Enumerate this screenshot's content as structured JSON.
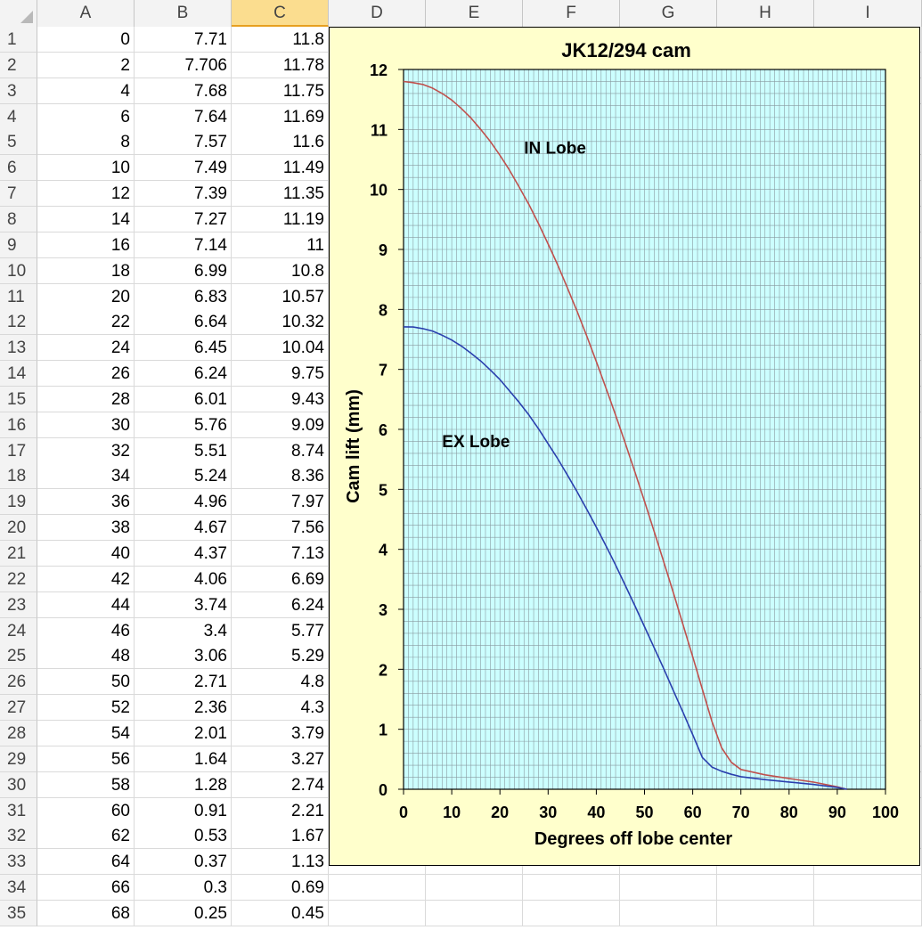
{
  "columns": [
    "A",
    "B",
    "C",
    "D",
    "E",
    "F",
    "G",
    "H",
    "I"
  ],
  "selected_column": "C",
  "rows": [
    [
      "1",
      "0",
      "7.71",
      "11.8"
    ],
    [
      "2",
      "2",
      "7.706",
      "11.78"
    ],
    [
      "3",
      "4",
      "7.68",
      "11.75"
    ],
    [
      "4",
      "6",
      "7.64",
      "11.69"
    ],
    [
      "5",
      "8",
      "7.57",
      "11.6"
    ],
    [
      "6",
      "10",
      "7.49",
      "11.49"
    ],
    [
      "7",
      "12",
      "7.39",
      "11.35"
    ],
    [
      "8",
      "14",
      "7.27",
      "11.19"
    ],
    [
      "9",
      "16",
      "7.14",
      "11"
    ],
    [
      "10",
      "18",
      "6.99",
      "10.8"
    ],
    [
      "11",
      "20",
      "6.83",
      "10.57"
    ],
    [
      "12",
      "22",
      "6.64",
      "10.32"
    ],
    [
      "13",
      "24",
      "6.45",
      "10.04"
    ],
    [
      "14",
      "26",
      "6.24",
      "9.75"
    ],
    [
      "15",
      "28",
      "6.01",
      "9.43"
    ],
    [
      "16",
      "30",
      "5.76",
      "9.09"
    ],
    [
      "17",
      "32",
      "5.51",
      "8.74"
    ],
    [
      "18",
      "34",
      "5.24",
      "8.36"
    ],
    [
      "19",
      "36",
      "4.96",
      "7.97"
    ],
    [
      "20",
      "38",
      "4.67",
      "7.56"
    ],
    [
      "21",
      "40",
      "4.37",
      "7.13"
    ],
    [
      "22",
      "42",
      "4.06",
      "6.69"
    ],
    [
      "23",
      "44",
      "3.74",
      "6.24"
    ],
    [
      "24",
      "46",
      "3.4",
      "5.77"
    ],
    [
      "25",
      "48",
      "3.06",
      "5.29"
    ],
    [
      "26",
      "50",
      "2.71",
      "4.8"
    ],
    [
      "27",
      "52",
      "2.36",
      "4.3"
    ],
    [
      "28",
      "54",
      "2.01",
      "3.79"
    ],
    [
      "29",
      "56",
      "1.64",
      "3.27"
    ],
    [
      "30",
      "58",
      "1.28",
      "2.74"
    ],
    [
      "31",
      "60",
      "0.91",
      "2.21"
    ],
    [
      "32",
      "62",
      "0.53",
      "1.67"
    ],
    [
      "33",
      "64",
      "0.37",
      "1.13"
    ],
    [
      "34",
      "66",
      "0.3",
      "0.69"
    ],
    [
      "35",
      "68",
      "0.25",
      "0.45"
    ]
  ],
  "chart_data": {
    "type": "line",
    "title": "JK12/294 cam",
    "xlabel": "Degrees off lobe center",
    "ylabel": "Cam lift (mm)",
    "xlim": [
      0,
      100
    ],
    "ylim": [
      0,
      12
    ],
    "xticks": [
      0,
      10,
      20,
      30,
      40,
      50,
      60,
      70,
      80,
      90,
      100
    ],
    "yticks": [
      0,
      1,
      2,
      3,
      4,
      5,
      6,
      7,
      8,
      9,
      10,
      11,
      12
    ],
    "grid": true,
    "background": "#ccffff",
    "chart_area_color": "#ffffcc",
    "series": [
      {
        "name": "IN Lobe",
        "color": "#c0504d",
        "label_at": [
          25,
          10.6
        ],
        "x": [
          0,
          2,
          4,
          6,
          8,
          10,
          12,
          14,
          16,
          18,
          20,
          22,
          24,
          26,
          28,
          30,
          32,
          34,
          36,
          38,
          40,
          42,
          44,
          46,
          48,
          50,
          52,
          54,
          56,
          58,
          60,
          62,
          64,
          66,
          68,
          70,
          75,
          80,
          85,
          90,
          92
        ],
        "y": [
          11.8,
          11.78,
          11.75,
          11.69,
          11.6,
          11.49,
          11.35,
          11.19,
          11,
          10.8,
          10.57,
          10.32,
          10.04,
          9.75,
          9.43,
          9.09,
          8.74,
          8.36,
          7.97,
          7.56,
          7.13,
          6.69,
          6.24,
          5.77,
          5.29,
          4.8,
          4.3,
          3.79,
          3.27,
          2.74,
          2.21,
          1.67,
          1.13,
          0.69,
          0.45,
          0.33,
          0.24,
          0.18,
          0.12,
          0.04,
          0
        ]
      },
      {
        "name": "EX Lobe",
        "color": "#2a3fae",
        "label_at": [
          8,
          5.7
        ],
        "x": [
          0,
          2,
          4,
          6,
          8,
          10,
          12,
          14,
          16,
          18,
          20,
          22,
          24,
          26,
          28,
          30,
          32,
          34,
          36,
          38,
          40,
          42,
          44,
          46,
          48,
          50,
          52,
          54,
          56,
          58,
          60,
          62,
          64,
          66,
          68,
          70,
          75,
          80,
          85,
          90,
          92
        ],
        "y": [
          7.71,
          7.706,
          7.68,
          7.64,
          7.57,
          7.49,
          7.39,
          7.27,
          7.14,
          6.99,
          6.83,
          6.64,
          6.45,
          6.24,
          6.01,
          5.76,
          5.51,
          5.24,
          4.96,
          4.67,
          4.37,
          4.06,
          3.74,
          3.4,
          3.06,
          2.71,
          2.36,
          2.01,
          1.64,
          1.28,
          0.91,
          0.53,
          0.37,
          0.3,
          0.25,
          0.21,
          0.16,
          0.12,
          0.08,
          0.03,
          0
        ]
      }
    ]
  }
}
